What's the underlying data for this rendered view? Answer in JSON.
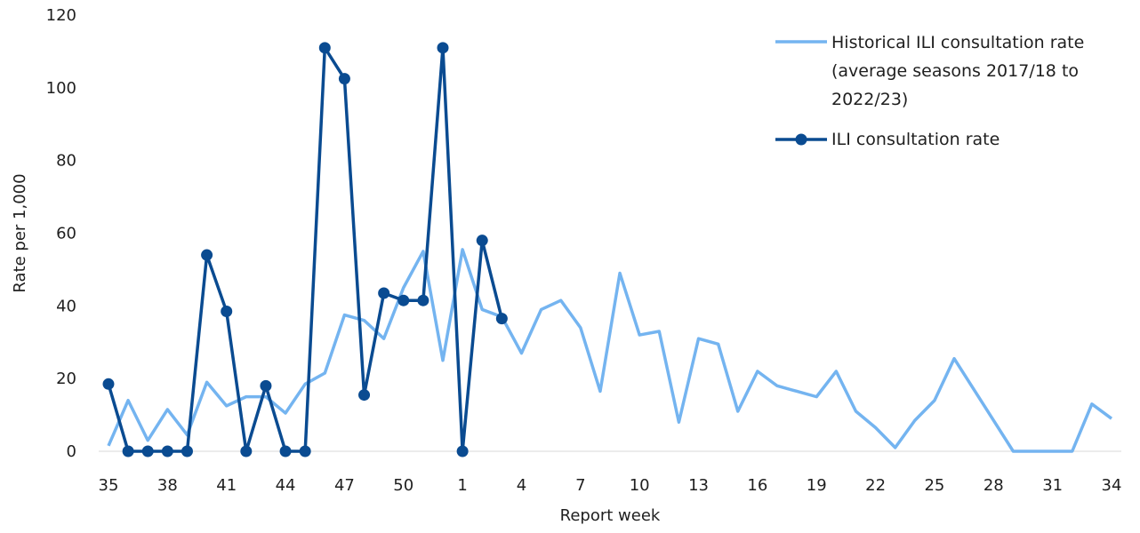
{
  "chart_data": {
    "type": "line",
    "xlabel": "Report week",
    "ylabel": "Rate per 1,000",
    "ylim": [
      0,
      120
    ],
    "yticks": [
      0,
      20,
      40,
      60,
      80,
      100,
      120
    ],
    "x_weeks": [
      35,
      36,
      37,
      38,
      39,
      40,
      41,
      42,
      43,
      44,
      45,
      46,
      47,
      48,
      49,
      50,
      51,
      52,
      1,
      2,
      3,
      4,
      5,
      6,
      7,
      8,
      9,
      10,
      11,
      12,
      13,
      14,
      15,
      16,
      17,
      18,
      19,
      20,
      21,
      22,
      23,
      24,
      25,
      26,
      27,
      28,
      29,
      30,
      31,
      32,
      33,
      34
    ],
    "x_tick_labels": [
      "35",
      "38",
      "41",
      "44",
      "47",
      "50",
      "1",
      "4",
      "7",
      "10",
      "13",
      "16",
      "19",
      "22",
      "25",
      "28",
      "31",
      "34"
    ],
    "grid": false,
    "legend_position": "top-right",
    "colors": {
      "historical": "#74b4f0",
      "current": "#0a4b91"
    },
    "series": [
      {
        "name": "Historical ILI consultation rate (average seasons 2017/18 to 2022/23)",
        "legend_lines": [
          "Historical ILI consultation rate",
          "(average seasons 2017/18 to",
          "2022/23)"
        ],
        "values": [
          1.5,
          14,
          3,
          11.5,
          4.5,
          19,
          12.5,
          15,
          15,
          10.5,
          18.5,
          21.5,
          37.5,
          36,
          31,
          45,
          55,
          25,
          55.5,
          39,
          37,
          27,
          39,
          41.5,
          34,
          16.5,
          49,
          32,
          33,
          8,
          31,
          29.5,
          11,
          22,
          18,
          16.5,
          15,
          22,
          11,
          6.5,
          1,
          8.5,
          14,
          25.5,
          17,
          8.5,
          0,
          0,
          0,
          0,
          13,
          9
        ]
      },
      {
        "name": "ILI consultation rate",
        "legend_lines": [
          "ILI consultation rate"
        ],
        "values": [
          18.5,
          0,
          0,
          0,
          0,
          54,
          38.5,
          0,
          18,
          0,
          0,
          111,
          102.5,
          15.5,
          43.5,
          41.5,
          41.5,
          111,
          0,
          58,
          36.5
        ]
      }
    ]
  }
}
